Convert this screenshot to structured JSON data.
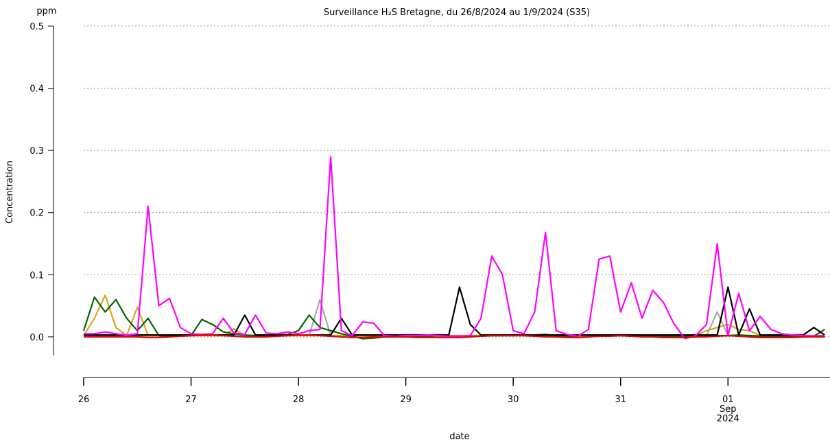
{
  "chart_data": {
    "type": "line",
    "title": "Surveillance H₂S Bretagne, du 26/8/2024 au 1/9/2024 (S35)",
    "y_unit": "ppm",
    "ylabel": "Concentration",
    "xlabel": "date",
    "x": [
      0,
      0.1,
      0.2,
      0.3,
      0.4,
      0.5,
      0.6,
      0.7,
      0.8,
      0.9,
      1,
      1.1,
      1.2,
      1.3,
      1.4,
      1.5,
      1.6,
      1.7,
      1.8,
      1.9,
      2,
      2.1,
      2.2,
      2.3,
      2.4,
      2.5,
      2.6,
      2.7,
      2.8,
      2.9,
      3,
      3.1,
      3.2,
      3.3,
      3.4,
      3.5,
      3.6,
      3.7,
      3.8,
      3.9,
      4,
      4.1,
      4.2,
      4.3,
      4.4,
      4.5,
      4.6,
      4.7,
      4.8,
      4.9,
      5,
      5.1,
      5.2,
      5.3,
      5.4,
      5.5,
      5.6,
      5.7,
      5.8,
      5.9,
      6,
      6.1,
      6.2,
      6.3,
      6.4,
      6.5,
      6.6,
      6.7,
      6.8,
      6.9
    ],
    "xlim": [
      0,
      6.95
    ],
    "xticks": [
      {
        "value": 0,
        "label": "26"
      },
      {
        "value": 1,
        "label": "27"
      },
      {
        "value": 2,
        "label": "28"
      },
      {
        "value": 3,
        "label": "29"
      },
      {
        "value": 4,
        "label": "30"
      },
      {
        "value": 5,
        "label": "31"
      },
      {
        "value": 6,
        "label": "01 Sep 2024"
      }
    ],
    "ylim": [
      -0.03,
      0.5
    ],
    "yticks": [
      {
        "value": 0,
        "label": "0.0"
      },
      0.1,
      0.2,
      0.3,
      0.4,
      0.5
    ],
    "grid": true,
    "series": [
      {
        "color": "#a9a9a9",
        "values": [
          0.002,
          0.002,
          0.002,
          0.002,
          0.002,
          0.002,
          0.002,
          0.002,
          0.002,
          0.002,
          0.002,
          0.002,
          0.002,
          0.002,
          0.002,
          0.002,
          0.002,
          0.002,
          0.002,
          0.002,
          0.002,
          0.002,
          0.06,
          0.002,
          0.002,
          0.002,
          0.002,
          0.002,
          0.002,
          0.002,
          0.002,
          0.002,
          0.002,
          0.002,
          0.002,
          0.002,
          0.002,
          0.002,
          0.002,
          0.002,
          0.002,
          0.002,
          0.002,
          0.002,
          0.002,
          0.002,
          0.002,
          0.002,
          0.002,
          0.002,
          0.002,
          0.002,
          0.002,
          0.002,
          0.002,
          0.002,
          0.002,
          0.002,
          0.002,
          0.04,
          0.002,
          0.002,
          0.002,
          0.002,
          0.002,
          0.002,
          0.002,
          0.002,
          0.002,
          0.002
        ]
      },
      {
        "color": "#daa520",
        "values": [
          0.002,
          0.03,
          0.067,
          0.015,
          0.002,
          0.048,
          0.002,
          0.002,
          0.002,
          0.002,
          0.002,
          0.002,
          0.002,
          0.002,
          0.013,
          0.002,
          0.002,
          0.002,
          0.002,
          0.002,
          0.002,
          0.002,
          0.002,
          0.002,
          0.002,
          0.002,
          0.002,
          0.002,
          0.002,
          0.002,
          0.002,
          0.002,
          0.002,
          0.002,
          0.002,
          0.002,
          0.002,
          0.002,
          0.002,
          0.002,
          0.002,
          0.002,
          0.002,
          0.002,
          0.002,
          0.002,
          0.002,
          0.002,
          0.002,
          0.002,
          0.002,
          0.002,
          0.002,
          0.002,
          0.002,
          0.002,
          0.002,
          0.002,
          0.01,
          0.015,
          0.02,
          0.012,
          0.01,
          0.002,
          0.002,
          0.002,
          0.002,
          0.002,
          0.002,
          0.002
        ]
      },
      {
        "color": "#006400",
        "values": [
          0.01,
          0.064,
          0.04,
          0.06,
          0.03,
          0.01,
          0.03,
          0.002,
          0.001,
          0.001,
          0.002,
          0.028,
          0.02,
          0.008,
          0.005,
          0.003,
          0.002,
          0.002,
          0.003,
          0.004,
          0.01,
          0.035,
          0.015,
          0.01,
          0.005,
          0.001,
          -0.003,
          -0.002,
          0,
          0,
          0.001,
          0.001,
          0.001,
          0.002,
          0.001,
          0.001,
          0.001,
          0.001,
          0.002,
          0.002,
          0.002,
          0.003,
          0.003,
          0.004,
          0.002,
          0.001,
          -0.001,
          0,
          0.001,
          0.002,
          0.002,
          0.001,
          0.001,
          0.001,
          0.001,
          0.001,
          0.001,
          0.001,
          0.002,
          0.002,
          0.002,
          0.003,
          0.002,
          0.001,
          0.001,
          0.001,
          0.001,
          0.002,
          0.001,
          0.012
        ]
      },
      {
        "color": "#000000",
        "values": [
          0.003,
          0.003,
          0.003,
          0.003,
          0.003,
          0.003,
          0.003,
          0.003,
          0.003,
          0.003,
          0.003,
          0.003,
          0.003,
          0.003,
          0.003,
          0.035,
          0.003,
          0.003,
          0.003,
          0.003,
          0.003,
          0.003,
          0.003,
          0.003,
          0.03,
          0.003,
          0.003,
          0.003,
          0.003,
          0.003,
          0.003,
          0.003,
          0.003,
          0.003,
          0.003,
          0.08,
          0.02,
          0.003,
          0.003,
          0.003,
          0.003,
          0.003,
          0.003,
          0.003,
          0.003,
          0.003,
          0.003,
          0.003,
          0.003,
          0.003,
          0.003,
          0.003,
          0.003,
          0.003,
          0.003,
          0.003,
          0.003,
          0.003,
          0.003,
          0.003,
          0.08,
          0.003,
          0.045,
          0.003,
          0.003,
          0.003,
          0.003,
          0.003,
          0.015,
          0.003
        ]
      },
      {
        "color": "#ff00ff",
        "values": [
          0.005,
          0.005,
          0.008,
          0.005,
          0.003,
          0.005,
          0.21,
          0.05,
          0.062,
          0.015,
          0.005,
          0.004,
          0.005,
          0.03,
          0.006,
          0.004,
          0.035,
          0.006,
          0.005,
          0.008,
          0.005,
          0.01,
          0.012,
          0.29,
          0.01,
          0.002,
          0.024,
          0.022,
          0.002,
          0.001,
          0.002,
          0.002,
          0.003,
          0.002,
          0.001,
          0.001,
          0.002,
          0.03,
          0.13,
          0.1,
          0.01,
          0.005,
          0.04,
          0.168,
          0.01,
          0.004,
          0.001,
          0.012,
          0.125,
          0.13,
          0.04,
          0.087,
          0.03,
          0.075,
          0.055,
          0.02,
          -0.003,
          0.002,
          0.02,
          0.15,
          0.002,
          0.07,
          0.01,
          0.033,
          0.012,
          0.005,
          0.003,
          0.002,
          0.001,
          0.002
        ]
      },
      {
        "color": "#e00000",
        "values": [
          0,
          0,
          0,
          0,
          0,
          0,
          -0.001,
          -0.001,
          0,
          0.001,
          0.002,
          0.003,
          0.003,
          0.002,
          0.001,
          0,
          0,
          0,
          0.001,
          0.002,
          0.003,
          0.003,
          0.002,
          0.001,
          0,
          -0.001,
          -0.001,
          0,
          0,
          0,
          0,
          -0.001,
          -0.001,
          -0.001,
          -0.001,
          -0.001,
          0,
          0.001,
          0.002,
          0.002,
          0.002,
          0.002,
          0.001,
          0,
          0,
          -0.001,
          -0.001,
          0,
          0.001,
          0.001,
          0.002,
          0.001,
          0,
          0,
          -0.001,
          -0.001,
          -0.001,
          0,
          0,
          0.001,
          0.002,
          0.001,
          0,
          -0.001,
          -0.001,
          -0.001,
          -0.001,
          0,
          0,
          0
        ]
      }
    ]
  }
}
